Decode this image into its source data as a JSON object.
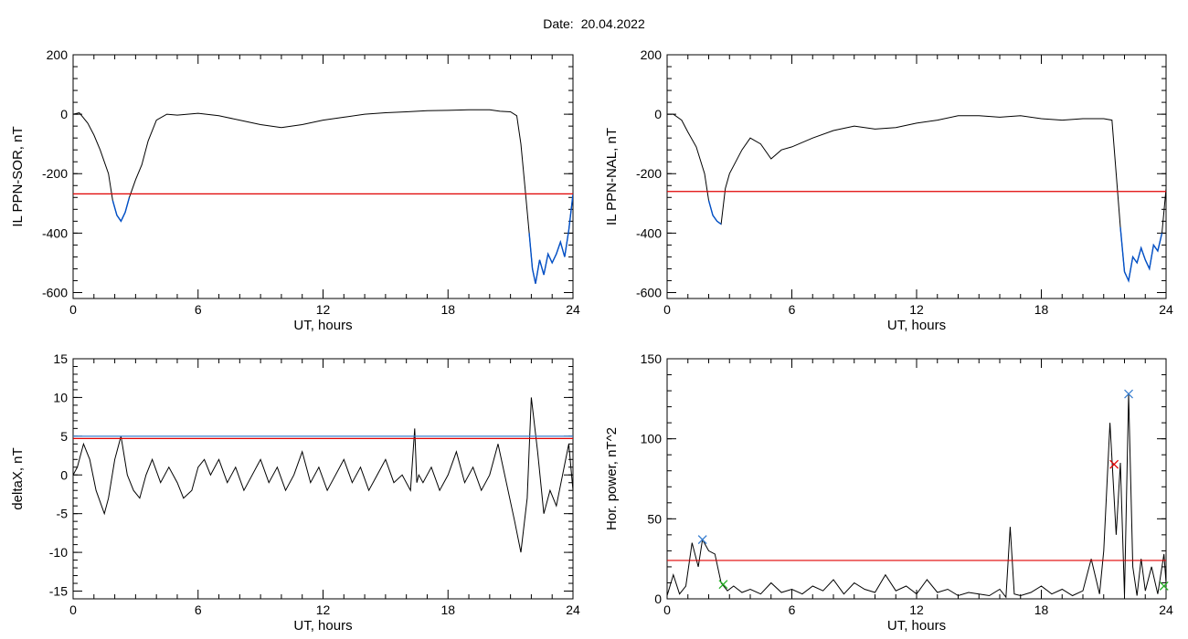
{
  "header": {
    "date_label": "Date:",
    "date_value": "20.04.2022"
  },
  "colors": {
    "trace": "#000000",
    "threshold": "#e00000",
    "highlight": "#0050c8",
    "level_blue": "#3a7fd0",
    "marker_blue": "#3a7fd0",
    "marker_red": "#e00000",
    "marker_green": "#22b022"
  },
  "chart_data": [
    {
      "id": "sor",
      "type": "line",
      "xlabel": "UT, hours",
      "ylabel": "IL PPN-SOR, nT",
      "xlim": [
        0,
        24
      ],
      "ylim": [
        -620,
        200
      ],
      "xticks": [
        0,
        6,
        12,
        18,
        24
      ],
      "yticks": [
        -600,
        -400,
        -200,
        0,
        200
      ],
      "threshold": -268,
      "highlight_below_threshold": true,
      "series": [
        {
          "x": [
            0,
            0.3,
            0.7,
            1.0,
            1.3,
            1.7,
            1.9,
            2.1,
            2.3,
            2.5,
            2.7,
            3.0,
            3.3,
            3.6,
            4.0,
            4.5,
            5,
            6,
            7,
            8,
            9,
            10,
            11,
            12,
            13,
            14,
            15,
            16,
            17,
            18,
            19,
            20,
            20.5,
            21,
            21.3,
            21.5,
            21.7,
            21.9,
            22.05,
            22.2,
            22.4,
            22.6,
            22.8,
            23,
            23.2,
            23.4,
            23.6,
            23.8,
            24
          ],
          "y": [
            0,
            5,
            -30,
            -70,
            -120,
            -200,
            -290,
            -340,
            -360,
            -330,
            -280,
            -220,
            -170,
            -90,
            -20,
            0,
            -3,
            3,
            -5,
            -20,
            -35,
            -45,
            -35,
            -20,
            -10,
            0,
            5,
            8,
            12,
            13,
            15,
            15,
            10,
            8,
            -5,
            -100,
            -250,
            -400,
            -520,
            -570,
            -490,
            -540,
            -470,
            -500,
            -470,
            -430,
            -480,
            -390,
            -270
          ]
        }
      ]
    },
    {
      "id": "nal",
      "type": "line",
      "xlabel": "UT, hours",
      "ylabel": "IL PPN-NAL, nT",
      "xlim": [
        0,
        24
      ],
      "ylim": [
        -620,
        200
      ],
      "xticks": [
        0,
        6,
        12,
        18,
        24
      ],
      "yticks": [
        -600,
        -400,
        -200,
        0,
        200
      ],
      "threshold": -260,
      "highlight_below_threshold": true,
      "series": [
        {
          "x": [
            0,
            0.3,
            0.7,
            1.0,
            1.4,
            1.8,
            2.0,
            2.2,
            2.4,
            2.6,
            2.8,
            3.0,
            3.3,
            3.6,
            4.0,
            4.5,
            5,
            5.5,
            6,
            7,
            8,
            9,
            10,
            11,
            12,
            13,
            14,
            15,
            16,
            17,
            18,
            19,
            20,
            21,
            21.4,
            21.6,
            21.8,
            22.0,
            22.2,
            22.4,
            22.6,
            22.8,
            23,
            23.2,
            23.4,
            23.6,
            23.8,
            24
          ],
          "y": [
            0,
            0,
            -20,
            -60,
            -110,
            -200,
            -290,
            -340,
            -360,
            -370,
            -250,
            -200,
            -160,
            -120,
            -80,
            -100,
            -150,
            -120,
            -110,
            -80,
            -55,
            -40,
            -50,
            -45,
            -30,
            -20,
            -5,
            -5,
            -10,
            -5,
            -15,
            -20,
            -15,
            -15,
            -20,
            -200,
            -380,
            -530,
            -560,
            -480,
            -500,
            -450,
            -490,
            -520,
            -440,
            -460,
            -400,
            -250
          ]
        }
      ]
    },
    {
      "id": "deltax",
      "type": "line",
      "xlabel": "UT, hours",
      "ylabel": "deltaX, nT",
      "xlim": [
        0,
        24
      ],
      "ylim": [
        -16,
        15
      ],
      "xticks": [
        0,
        6,
        12,
        18,
        24
      ],
      "yticks": [
        -15,
        -10,
        -5,
        0,
        5,
        10,
        15
      ],
      "levels": [
        {
          "y": 5.0,
          "color_key": "level_blue"
        },
        {
          "y": 4.7,
          "color_key": "threshold"
        }
      ],
      "series": [
        {
          "x": [
            0,
            0.2,
            0.5,
            0.8,
            1.1,
            1.5,
            1.7,
            2.0,
            2.3,
            2.6,
            2.9,
            3.2,
            3.5,
            3.8,
            4.2,
            4.6,
            5.0,
            5.3,
            5.7,
            6.0,
            6.3,
            6.6,
            7.0,
            7.4,
            7.8,
            8.2,
            8.6,
            9.0,
            9.4,
            9.8,
            10.2,
            10.6,
            11,
            11.4,
            11.8,
            12.2,
            12.6,
            13,
            13.4,
            13.8,
            14.2,
            14.6,
            15,
            15.4,
            15.8,
            16.2,
            16.4,
            16.5,
            16.6,
            16.8,
            17.2,
            17.6,
            18,
            18.4,
            18.8,
            19.2,
            19.6,
            20,
            20.4,
            20.8,
            21.2,
            21.5,
            21.8,
            22.0,
            22.3,
            22.6,
            22.9,
            23.2,
            23.5,
            23.8,
            24
          ],
          "y": [
            0,
            1,
            4,
            2,
            -2,
            -5,
            -3,
            2,
            5,
            0,
            -2,
            -3,
            0,
            2,
            -1,
            1,
            -1,
            -3,
            -2,
            1,
            2,
            0,
            2,
            -1,
            1,
            -2,
            0,
            2,
            -1,
            1,
            -2,
            0,
            3,
            -1,
            1,
            -2,
            0,
            2,
            -1,
            1,
            -2,
            0,
            2,
            -1,
            0,
            -2,
            6,
            -1,
            0,
            -1,
            1,
            -2,
            0,
            3,
            -1,
            1,
            -2,
            0,
            4,
            -1,
            -6,
            -10,
            -3,
            10,
            3,
            -5,
            -2,
            -4,
            0,
            4,
            -2
          ]
        }
      ]
    },
    {
      "id": "power",
      "type": "line",
      "xlabel": "UT, hours",
      "ylabel": "Hor. power, nT^2",
      "xlim": [
        0,
        24
      ],
      "ylim": [
        0,
        150
      ],
      "xticks": [
        0,
        6,
        12,
        18,
        24
      ],
      "yticks": [
        0,
        50,
        100,
        150
      ],
      "threshold": 24,
      "series": [
        {
          "x": [
            0,
            0.3,
            0.6,
            0.9,
            1.2,
            1.5,
            1.7,
            2.0,
            2.3,
            2.6,
            2.9,
            3.2,
            3.6,
            4.0,
            4.5,
            5,
            5.5,
            6,
            6.5,
            7,
            7.5,
            8,
            8.5,
            9,
            9.5,
            10,
            10.5,
            11,
            11.5,
            12,
            12.5,
            13,
            13.5,
            14,
            14.5,
            15,
            15.5,
            16,
            16.3,
            16.5,
            16.7,
            17,
            17.5,
            18,
            18.5,
            19,
            19.5,
            20,
            20.4,
            20.8,
            21.0,
            21.3,
            21.6,
            21.8,
            22.0,
            22.2,
            22.4,
            22.6,
            22.8,
            23.0,
            23.3,
            23.6,
            23.9,
            24
          ],
          "y": [
            2,
            15,
            3,
            8,
            35,
            20,
            37,
            30,
            28,
            10,
            5,
            8,
            4,
            6,
            3,
            10,
            4,
            6,
            3,
            8,
            5,
            12,
            3,
            10,
            6,
            4,
            15,
            5,
            8,
            3,
            12,
            4,
            6,
            2,
            4,
            3,
            2,
            6,
            1,
            45,
            3,
            2,
            4,
            8,
            3,
            6,
            2,
            5,
            25,
            3,
            30,
            110,
            40,
            85,
            2,
            128,
            20,
            2,
            25,
            5,
            20,
            3,
            28,
            10
          ]
        }
      ],
      "markers": [
        {
          "x": 1.7,
          "y": 37,
          "color_key": "marker_blue"
        },
        {
          "x": 2.7,
          "y": 9,
          "color_key": "marker_green"
        },
        {
          "x": 21.5,
          "y": 84,
          "color_key": "marker_red"
        },
        {
          "x": 22.2,
          "y": 128,
          "color_key": "marker_blue"
        },
        {
          "x": 23.9,
          "y": 8,
          "color_key": "marker_green"
        }
      ]
    }
  ]
}
